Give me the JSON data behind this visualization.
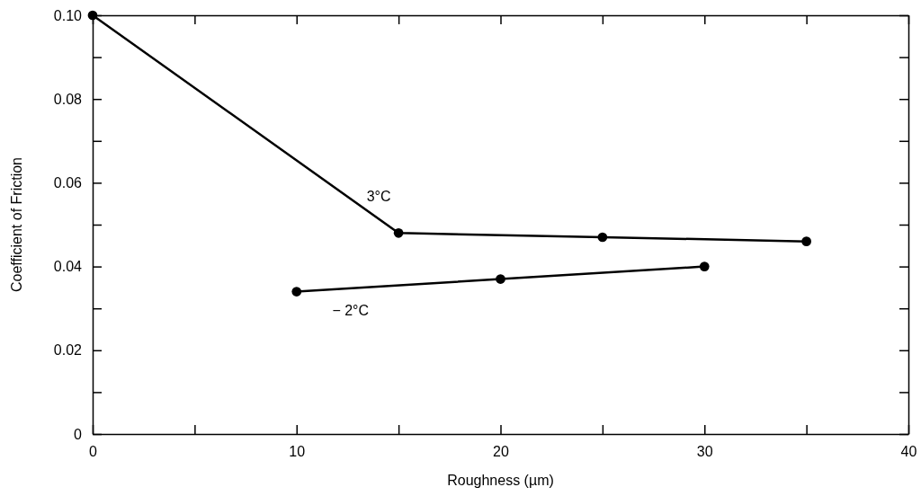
{
  "chart_data": {
    "type": "line",
    "xlabel": "Roughness (µm)",
    "ylabel": "Coefficient of Friction",
    "xlim": [
      0,
      40
    ],
    "ylim": [
      0,
      0.1
    ],
    "xticks": [
      0,
      {
        "value": 5,
        "label": null
      },
      10,
      {
        "value": 15,
        "label": null
      },
      20,
      {
        "value": 25,
        "label": null
      },
      30,
      {
        "value": 35,
        "label": null
      },
      40
    ],
    "yticks": [
      0,
      {
        "value": 0.01,
        "label": null
      },
      0.02,
      {
        "value": 0.03,
        "label": null
      },
      0.04,
      {
        "value": 0.05,
        "label": null
      },
      0.06,
      {
        "value": 0.07,
        "label": null
      },
      0.08,
      {
        "value": 0.09,
        "label": null
      },
      {
        "value": 0.1,
        "label": "0.10"
      }
    ],
    "grid": false,
    "marker": "circle",
    "line_style": "solid",
    "series": [
      {
        "name": "3°C",
        "color": "#000000",
        "x": [
          0,
          15,
          25,
          35
        ],
        "values": [
          0.1,
          0.048,
          0.047,
          0.046
        ]
      },
      {
        "name": "− 2°C",
        "color": "#000000",
        "x": [
          10,
          20,
          30
        ],
        "values": [
          0.034,
          0.037,
          0.04
        ]
      }
    ]
  }
}
